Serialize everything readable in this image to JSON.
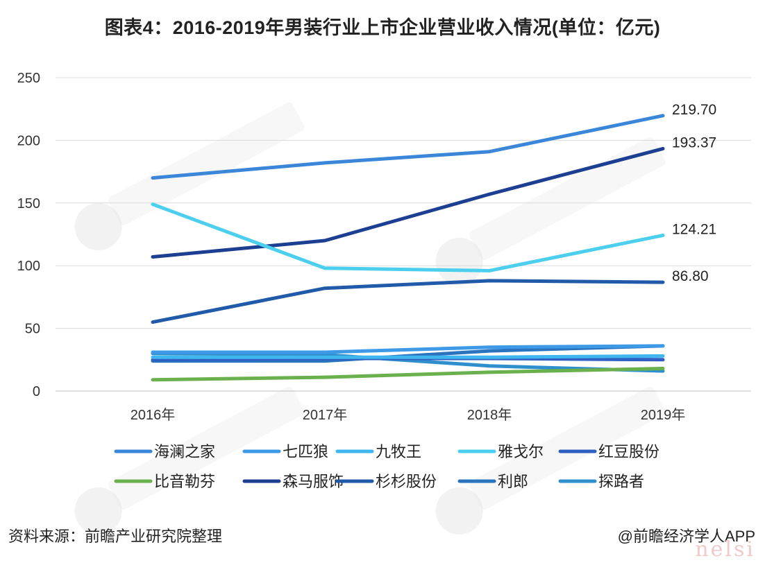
{
  "title": "图表4：2016-2019年男装行业上市企业营业收入情况(单位：亿元)",
  "source": "资料来源：前瞻产业研究院整理",
  "credit": "@前瞻经济学人APP",
  "watermark_corner": "nelsi",
  "chart_data": {
    "type": "line",
    "categories": [
      "2016年",
      "2017年",
      "2018年",
      "2019年"
    ],
    "ylim": [
      0,
      250
    ],
    "yticks": [
      0,
      50,
      100,
      150,
      200,
      250
    ],
    "grid": "horizontal",
    "legend_position": "bottom",
    "series": [
      {
        "name": "海澜之家",
        "color": "#3a86d8",
        "values": [
          170,
          182,
          191,
          219.7
        ],
        "end_label": "219.70"
      },
      {
        "name": "七匹狼",
        "color": "#3e9ae6",
        "values": [
          31,
          31,
          35,
          36
        ],
        "end_label": ""
      },
      {
        "name": "九牧王",
        "color": "#3fb6ee",
        "values": [
          27,
          27,
          27,
          28
        ],
        "end_label": ""
      },
      {
        "name": "雅戈尔",
        "color": "#4ccfee",
        "values": [
          149,
          98,
          96,
          124.21
        ],
        "end_label": "124.21"
      },
      {
        "name": "红豆股份",
        "color": "#2f5fc2",
        "values": [
          25,
          26,
          26,
          25
        ],
        "end_label": ""
      },
      {
        "name": "比音勒芬",
        "color": "#6ab04c",
        "values": [
          9,
          11,
          15,
          18
        ],
        "end_label": ""
      },
      {
        "name": "森马服饰",
        "color": "#1c3f92",
        "values": [
          107,
          120,
          157,
          193.37
        ],
        "end_label": "193.37"
      },
      {
        "name": "杉杉股份",
        "color": "#215aa8",
        "values": [
          55,
          82,
          88,
          86.8
        ],
        "end_label": "86.80"
      },
      {
        "name": "利郎",
        "color": "#2a74bf",
        "values": [
          24,
          24,
          32,
          36
        ],
        "end_label": ""
      },
      {
        "name": "探路者",
        "color": "#2f8fcc",
        "values": [
          30,
          29,
          20,
          16
        ],
        "end_label": ""
      }
    ]
  }
}
